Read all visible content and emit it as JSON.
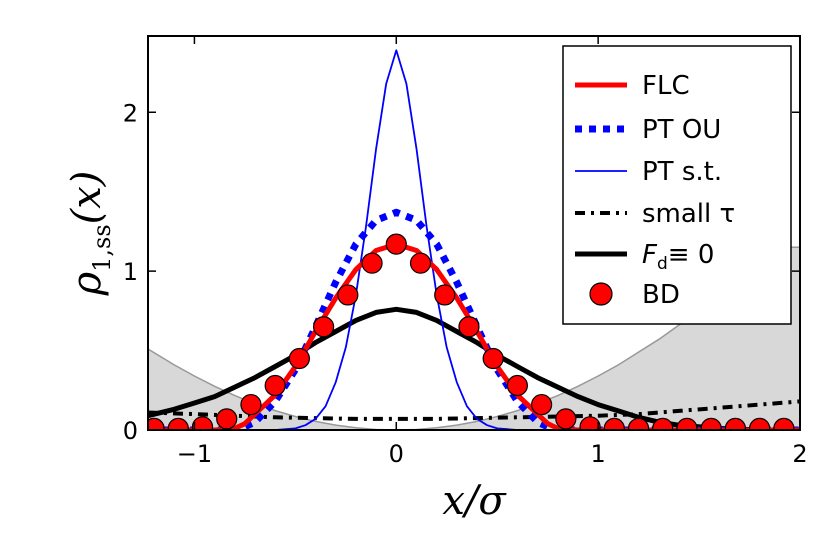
{
  "chart_data": {
    "type": "line",
    "xlabel": "x/σ",
    "ylabel": {
      "main": "ρ",
      "sub": "1,ss",
      "arg": "(x)"
    },
    "xlim": [
      -1.23,
      2.0
    ],
    "ylim": [
      0,
      2.48
    ],
    "xticks": [
      -1,
      0,
      1,
      2
    ],
    "xtick_labels": [
      "−1",
      "0",
      "1",
      "2"
    ],
    "yticks": [
      0,
      1,
      2
    ],
    "ytick_labels": [
      "0",
      "1",
      "2"
    ],
    "grid": false,
    "legend_position": "top-right",
    "series": [
      {
        "name": "FLC",
        "style": "solid-thick",
        "color": "#ff0000",
        "x": [
          -1.23,
          -1.1,
          -1.0,
          -0.9,
          -0.8,
          -0.75,
          -0.7,
          -0.6,
          -0.5,
          -0.4,
          -0.3,
          -0.2,
          -0.1,
          0,
          0.1,
          0.2,
          0.3,
          0.4,
          0.5,
          0.6,
          0.7,
          0.75,
          0.8,
          0.9,
          1.0,
          1.2,
          1.5,
          2.0
        ],
        "y": [
          0,
          0,
          0,
          0,
          0.01,
          0.04,
          0.1,
          0.22,
          0.4,
          0.62,
          0.83,
          1.01,
          1.13,
          1.17,
          1.13,
          1.01,
          0.83,
          0.62,
          0.4,
          0.22,
          0.1,
          0.04,
          0.01,
          0,
          0,
          0,
          0,
          0
        ]
      },
      {
        "name": "PT OU",
        "style": "dotted-thick",
        "color": "#0000ff",
        "x": [
          -1.23,
          -0.9,
          -0.8,
          -0.75,
          -0.7,
          -0.6,
          -0.5,
          -0.4,
          -0.3,
          -0.2,
          -0.1,
          0,
          0.1,
          0.2,
          0.3,
          0.4,
          0.5,
          0.6,
          0.7,
          0.75,
          0.8,
          0.9,
          1.2,
          1.5,
          2.0
        ],
        "y": [
          0,
          0,
          0,
          0.02,
          0.05,
          0.18,
          0.38,
          0.65,
          0.93,
          1.17,
          1.32,
          1.37,
          1.32,
          1.17,
          0.93,
          0.65,
          0.38,
          0.18,
          0.05,
          0.02,
          0,
          0,
          0,
          0,
          0
        ]
      },
      {
        "name": "PT s.t.",
        "style": "solid-thin",
        "color": "#0000ff",
        "x": [
          -1.23,
          -0.6,
          -0.5,
          -0.45,
          -0.4,
          -0.35,
          -0.3,
          -0.25,
          -0.2,
          -0.15,
          -0.1,
          -0.05,
          0,
          0.05,
          0.1,
          0.15,
          0.2,
          0.25,
          0.3,
          0.35,
          0.4,
          0.45,
          0.5,
          0.6,
          2.0
        ],
        "y": [
          0,
          0,
          0.01,
          0.03,
          0.07,
          0.15,
          0.3,
          0.52,
          0.85,
          1.28,
          1.77,
          2.18,
          2.39,
          2.18,
          1.77,
          1.28,
          0.85,
          0.52,
          0.3,
          0.15,
          0.07,
          0.03,
          0.01,
          0,
          0
        ]
      },
      {
        "name": "small τ",
        "style": "dash-dot-thick",
        "color": "#000000",
        "x": [
          -1.23,
          -1.0,
          -0.8,
          -0.6,
          -0.4,
          -0.2,
          0,
          0.2,
          0.4,
          0.6,
          0.8,
          1.0,
          1.2,
          1.4,
          1.6,
          1.8,
          2.0
        ],
        "y": [
          0.11,
          0.1,
          0.09,
          0.08,
          0.075,
          0.07,
          0.07,
          0.07,
          0.075,
          0.08,
          0.085,
          0.09,
          0.1,
          0.12,
          0.14,
          0.16,
          0.18
        ]
      },
      {
        "name": "F_d ≡ 0",
        "style": "solid-thick",
        "color": "#000000",
        "x": [
          -1.23,
          -1.1,
          -1.0,
          -0.9,
          -0.8,
          -0.7,
          -0.6,
          -0.5,
          -0.4,
          -0.3,
          -0.2,
          -0.1,
          0,
          0.1,
          0.2,
          0.3,
          0.4,
          0.5,
          0.6,
          0.7,
          0.8,
          0.9,
          1.0,
          1.1,
          1.2,
          1.3,
          1.4,
          1.6,
          1.8,
          2.0
        ],
        "y": [
          0.09,
          0.13,
          0.17,
          0.21,
          0.27,
          0.33,
          0.4,
          0.47,
          0.55,
          0.62,
          0.69,
          0.74,
          0.76,
          0.74,
          0.69,
          0.62,
          0.55,
          0.47,
          0.4,
          0.33,
          0.27,
          0.21,
          0.16,
          0.12,
          0.08,
          0.05,
          0.03,
          0.01,
          0,
          0
        ]
      },
      {
        "name": "BD",
        "style": "markers",
        "color": "#ff0000",
        "x": [
          -1.2,
          -1.08,
          -0.96,
          -0.84,
          -0.72,
          -0.6,
          -0.48,
          -0.36,
          -0.24,
          -0.12,
          0.0,
          0.12,
          0.24,
          0.36,
          0.48,
          0.6,
          0.72,
          0.84,
          0.96,
          1.08,
          1.2,
          1.32,
          1.44,
          1.56,
          1.68,
          1.8,
          1.92
        ],
        "y": [
          0.01,
          0.01,
          0.02,
          0.07,
          0.16,
          0.28,
          0.45,
          0.65,
          0.85,
          1.05,
          1.17,
          1.05,
          0.85,
          0.65,
          0.45,
          0.28,
          0.16,
          0.07,
          0.02,
          0.01,
          0.01,
          0.01,
          0.01,
          0.01,
          0.01,
          0.01,
          0.01
        ]
      }
    ],
    "background_potential": {
      "fill": "#d8d8d8",
      "edge": "#999999",
      "x": [
        -1.23,
        -1.1,
        -1.0,
        -0.9,
        -0.8,
        -0.7,
        -0.6,
        -0.5,
        -0.4,
        -0.3,
        -0.2,
        -0.1,
        0,
        0.1,
        0.2,
        0.3,
        0.4,
        0.5,
        0.6,
        0.7,
        0.8,
        0.9,
        1.0,
        1.1,
        1.2,
        1.3,
        1.4,
        1.5,
        1.6,
        1.7,
        1.8,
        1.9,
        2.0
      ],
      "y": [
        0.51,
        0.41,
        0.34,
        0.275,
        0.217,
        0.166,
        0.122,
        0.085,
        0.054,
        0.031,
        0.014,
        0.003,
        0,
        0.003,
        0.014,
        0.031,
        0.054,
        0.085,
        0.122,
        0.166,
        0.217,
        0.275,
        0.34,
        0.41,
        0.49,
        0.57,
        0.66,
        0.76,
        0.86,
        0.97,
        1.08,
        1.15,
        1.15
      ]
    }
  }
}
